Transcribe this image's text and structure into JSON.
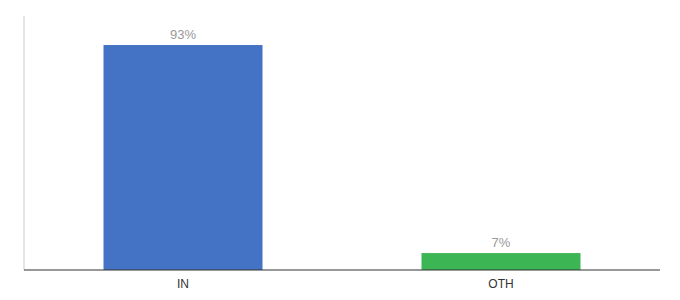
{
  "chart_data": {
    "type": "bar",
    "categories": [
      "IN",
      "OTH"
    ],
    "values": [
      93,
      7
    ],
    "value_labels": [
      "93%",
      "7%"
    ],
    "colors": [
      "#4472c4",
      "#3cb554"
    ],
    "ylim": [
      0,
      105
    ],
    "data_labels": true,
    "tick_labels": "x"
  }
}
